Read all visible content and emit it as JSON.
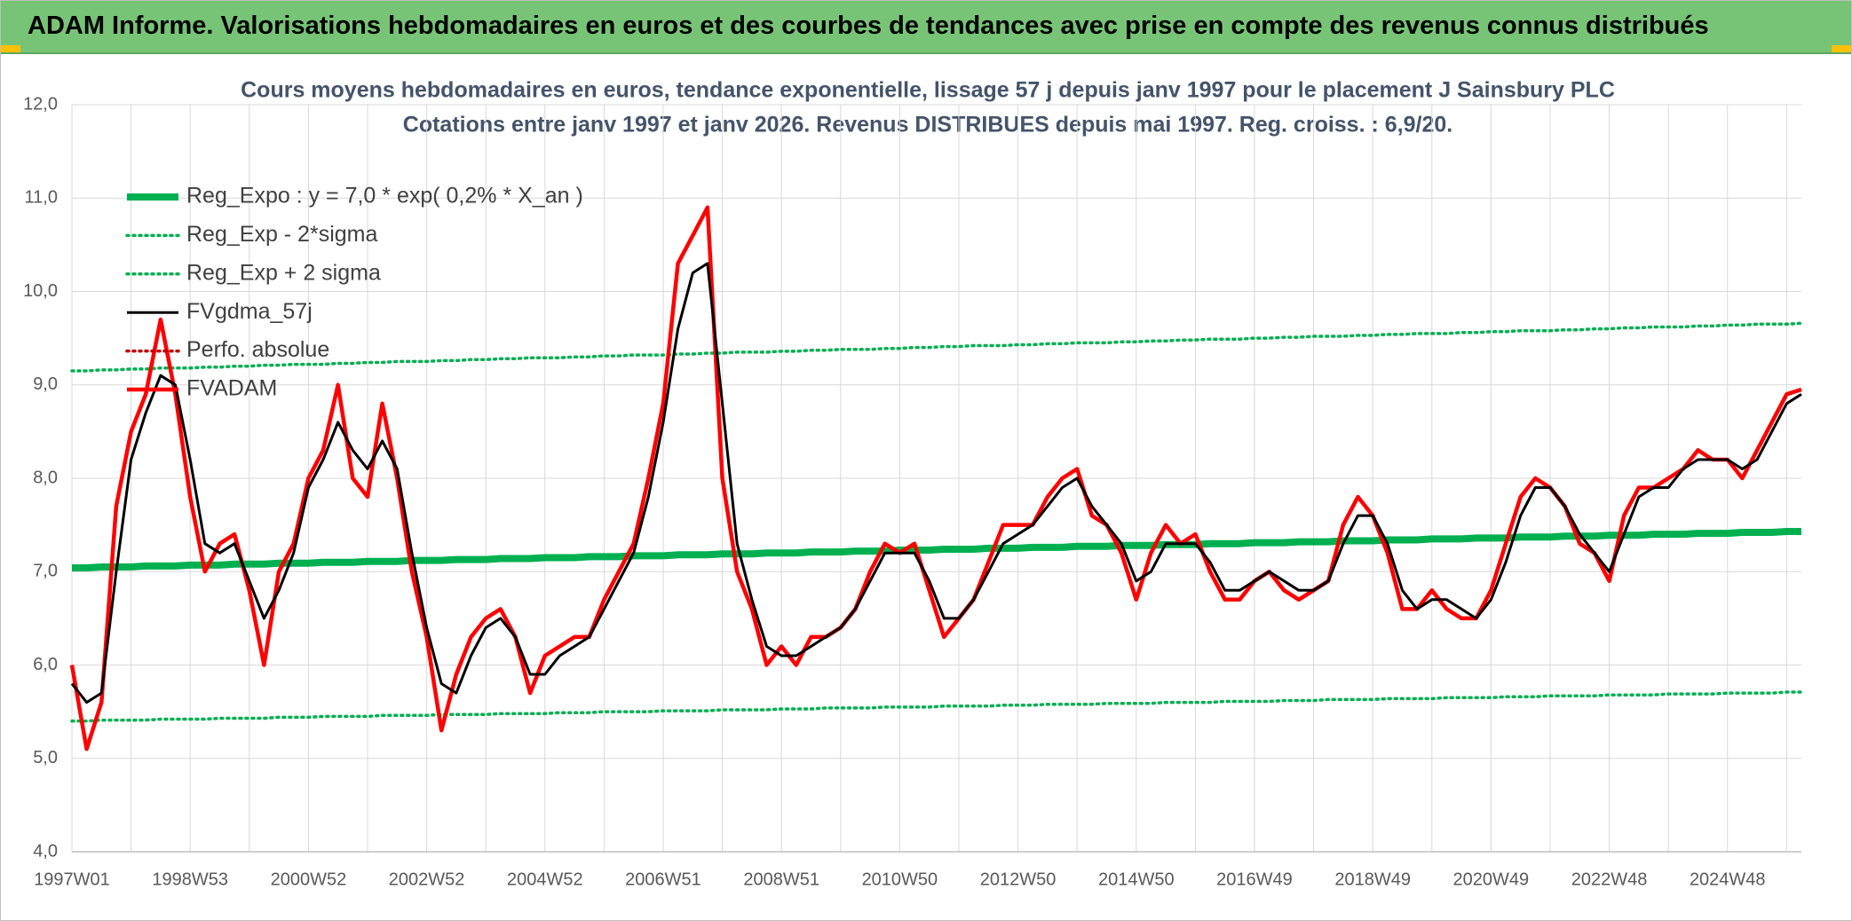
{
  "header": "ADAM Informe. Valorisations hebdomadaires en euros et des courbes de tendances avec prise en compte des revenus connus distribués",
  "chart_data": {
    "type": "line",
    "title": [
      "Cours moyens hebdomadaires en euros, tendance exponentielle, lissage 57 j depuis janv 1997 pour le placement J Sainsbury PLC",
      "Cotations entre janv 1997 et janv 2026. Revenus DISTRIBUES depuis mai 1997. Reg. croiss. : 6,9/20."
    ],
    "categories": [
      "1997W01",
      null,
      null,
      null,
      null,
      null,
      null,
      null,
      "1998W53",
      null,
      null,
      null,
      null,
      null,
      null,
      null,
      "2000W52",
      null,
      null,
      null,
      null,
      null,
      null,
      null,
      "2002W52",
      null,
      null,
      null,
      null,
      null,
      null,
      null,
      "2004W52",
      null,
      null,
      null,
      null,
      null,
      null,
      null,
      "2006W51",
      null,
      null,
      null,
      null,
      null,
      null,
      null,
      "2008W51",
      null,
      null,
      null,
      null,
      null,
      null,
      null,
      "2010W50",
      null,
      null,
      null,
      null,
      null,
      null,
      null,
      "2012W50",
      null,
      null,
      null,
      null,
      null,
      null,
      null,
      "2014W50",
      null,
      null,
      null,
      null,
      null,
      null,
      null,
      "2016W49",
      null,
      null,
      null,
      null,
      null,
      null,
      null,
      "2018W49",
      null,
      null,
      null,
      null,
      null,
      null,
      null,
      "2020W49",
      null,
      null,
      null,
      null,
      null,
      null,
      null,
      "2022W48",
      null,
      null,
      null,
      null,
      null,
      null,
      null,
      "2024W48",
      null,
      null,
      null,
      null,
      null
    ],
    "ylim": [
      4,
      12
    ],
    "yticks": [
      {
        "value": 4,
        "label": "4,0"
      },
      {
        "value": 5,
        "label": "5,0"
      },
      {
        "value": 6,
        "label": "6,0"
      },
      {
        "value": 7,
        "label": "7,0"
      },
      {
        "value": 8,
        "label": "8,0"
      },
      {
        "value": 9,
        "label": "9,0"
      },
      {
        "value": 10,
        "label": "10,0"
      },
      {
        "value": 11,
        "label": "11,0"
      },
      {
        "value": 12,
        "label": "12,0"
      }
    ],
    "grid": true,
    "legend": "upper left",
    "series": [
      {
        "name": "Reg_Expo : y = 7,0 * exp( 0,2% *  X_an )",
        "color": "#00b050",
        "style": "thick",
        "values": [
          7.04,
          7.04,
          7.05,
          7.05,
          7.05,
          7.06,
          7.06,
          7.06,
          7.07,
          7.07,
          7.07,
          7.08,
          7.08,
          7.08,
          7.09,
          7.09,
          7.09,
          7.1,
          7.1,
          7.1,
          7.11,
          7.11,
          7.11,
          7.12,
          7.12,
          7.12,
          7.13,
          7.13,
          7.13,
          7.14,
          7.14,
          7.14,
          7.15,
          7.15,
          7.15,
          7.16,
          7.16,
          7.16,
          7.17,
          7.17,
          7.17,
          7.18,
          7.18,
          7.18,
          7.19,
          7.19,
          7.19,
          7.2,
          7.2,
          7.2,
          7.21,
          7.21,
          7.21,
          7.22,
          7.22,
          7.22,
          7.23,
          7.23,
          7.23,
          7.24,
          7.24,
          7.24,
          7.25,
          7.25,
          7.25,
          7.26,
          7.26,
          7.26,
          7.27,
          7.27,
          7.27,
          7.28,
          7.28,
          7.28,
          7.29,
          7.29,
          7.29,
          7.3,
          7.3,
          7.3,
          7.31,
          7.31,
          7.31,
          7.32,
          7.32,
          7.32,
          7.33,
          7.33,
          7.33,
          7.34,
          7.34,
          7.34,
          7.35,
          7.35,
          7.35,
          7.36,
          7.36,
          7.36,
          7.37,
          7.37,
          7.37,
          7.38,
          7.38,
          7.38,
          7.39,
          7.39,
          7.39,
          7.4,
          7.4,
          7.4,
          7.41,
          7.41,
          7.41,
          7.42,
          7.42,
          7.42,
          7.43,
          7.43
        ]
      },
      {
        "name": "Reg_Exp - 2*sigma",
        "color": "#00b050",
        "style": "dotted",
        "values": [
          5.4,
          5.4,
          5.41,
          5.41,
          5.41,
          5.41,
          5.42,
          5.42,
          5.42,
          5.42,
          5.43,
          5.43,
          5.43,
          5.43,
          5.44,
          5.44,
          5.44,
          5.45,
          5.45,
          5.45,
          5.45,
          5.46,
          5.46,
          5.46,
          5.46,
          5.47,
          5.47,
          5.47,
          5.47,
          5.48,
          5.48,
          5.48,
          5.48,
          5.49,
          5.49,
          5.49,
          5.5,
          5.5,
          5.5,
          5.5,
          5.51,
          5.51,
          5.51,
          5.51,
          5.52,
          5.52,
          5.52,
          5.52,
          5.53,
          5.53,
          5.53,
          5.54,
          5.54,
          5.54,
          5.54,
          5.55,
          5.55,
          5.55,
          5.55,
          5.56,
          5.56,
          5.56,
          5.56,
          5.57,
          5.57,
          5.57,
          5.58,
          5.58,
          5.58,
          5.58,
          5.59,
          5.59,
          5.59,
          5.59,
          5.6,
          5.6,
          5.6,
          5.6,
          5.61,
          5.61,
          5.61,
          5.61,
          5.62,
          5.62,
          5.62,
          5.63,
          5.63,
          5.63,
          5.63,
          5.64,
          5.64,
          5.64,
          5.64,
          5.65,
          5.65,
          5.65,
          5.65,
          5.66,
          5.66,
          5.66,
          5.67,
          5.67,
          5.67,
          5.67,
          5.68,
          5.68,
          5.68,
          5.68,
          5.69,
          5.69,
          5.69,
          5.69,
          5.7,
          5.7,
          5.7,
          5.7,
          5.71,
          5.71
        ]
      },
      {
        "name": "Reg_Exp + 2 sigma",
        "color": "#00b050",
        "style": "dotted",
        "values": [
          9.15,
          9.15,
          9.16,
          9.16,
          9.17,
          9.17,
          9.18,
          9.18,
          9.18,
          9.19,
          9.19,
          9.2,
          9.2,
          9.21,
          9.21,
          9.22,
          9.22,
          9.22,
          9.23,
          9.23,
          9.24,
          9.24,
          9.25,
          9.25,
          9.25,
          9.26,
          9.26,
          9.27,
          9.27,
          9.28,
          9.28,
          9.29,
          9.29,
          9.29,
          9.3,
          9.3,
          9.31,
          9.31,
          9.32,
          9.32,
          9.32,
          9.33,
          9.33,
          9.34,
          9.34,
          9.35,
          9.35,
          9.35,
          9.36,
          9.36,
          9.37,
          9.37,
          9.38,
          9.38,
          9.38,
          9.39,
          9.39,
          9.4,
          9.4,
          9.41,
          9.41,
          9.42,
          9.42,
          9.42,
          9.43,
          9.43,
          9.44,
          9.44,
          9.45,
          9.45,
          9.45,
          9.46,
          9.46,
          9.47,
          9.47,
          9.48,
          9.48,
          9.49,
          9.49,
          9.49,
          9.5,
          9.5,
          9.51,
          9.51,
          9.52,
          9.52,
          9.52,
          9.53,
          9.53,
          9.54,
          9.54,
          9.55,
          9.55,
          9.55,
          9.56,
          9.56,
          9.57,
          9.57,
          9.58,
          9.58,
          9.58,
          9.59,
          9.59,
          9.6,
          9.6,
          9.61,
          9.61,
          9.62,
          9.62,
          9.62,
          9.63,
          9.63,
          9.64,
          9.64,
          9.65,
          9.65,
          9.65,
          9.66
        ]
      },
      {
        "name": "FVgdma_57j",
        "color": "#000000",
        "style": "thin",
        "values": [
          5.8,
          5.6,
          5.7,
          7.0,
          8.2,
          8.7,
          9.1,
          9.0,
          8.2,
          7.3,
          7.2,
          7.3,
          6.9,
          6.5,
          6.8,
          7.2,
          7.9,
          8.2,
          8.6,
          8.3,
          8.1,
          8.4,
          8.1,
          7.2,
          6.4,
          5.8,
          5.7,
          6.1,
          6.4,
          6.5,
          6.3,
          5.9,
          5.9,
          6.1,
          6.2,
          6.3,
          6.6,
          6.9,
          7.2,
          7.8,
          8.6,
          9.6,
          10.2,
          10.3,
          8.8,
          7.3,
          6.7,
          6.2,
          6.1,
          6.1,
          6.2,
          6.3,
          6.4,
          6.6,
          6.9,
          7.2,
          7.2,
          7.2,
          6.9,
          6.5,
          6.5,
          6.7,
          7.0,
          7.3,
          7.4,
          7.5,
          7.7,
          7.9,
          8.0,
          7.7,
          7.5,
          7.3,
          6.9,
          7.0,
          7.3,
          7.3,
          7.3,
          7.1,
          6.8,
          6.8,
          6.9,
          7.0,
          6.9,
          6.8,
          6.8,
          6.9,
          7.3,
          7.6,
          7.6,
          7.3,
          6.8,
          6.6,
          6.7,
          6.7,
          6.6,
          6.5,
          6.7,
          7.1,
          7.6,
          7.9,
          7.9,
          7.7,
          7.4,
          7.2,
          7.0,
          7.4,
          7.8,
          7.9,
          7.9,
          8.1,
          8.2,
          8.2,
          8.2,
          8.1,
          8.2,
          8.5,
          8.8,
          8.9
        ]
      },
      {
        "name": "Perfo. absolue",
        "color": "#c00000",
        "style": "dotted",
        "values": [
          null,
          null,
          null,
          null,
          null,
          null,
          null,
          null,
          null,
          null,
          null,
          null,
          null,
          null,
          null,
          null,
          null,
          null,
          null,
          null,
          null,
          null,
          null,
          null,
          null,
          null,
          null,
          null,
          null,
          null,
          null,
          null,
          null,
          null,
          null,
          null,
          null,
          null,
          null,
          null,
          null,
          null,
          null,
          null,
          null,
          null,
          null,
          null,
          null,
          null,
          null,
          null,
          null,
          null,
          null,
          null,
          null,
          null,
          null,
          null,
          null,
          null,
          null,
          null,
          null,
          null,
          null,
          null,
          null,
          null,
          null,
          null,
          null,
          null,
          null,
          null,
          null,
          null,
          null,
          null,
          null,
          null,
          null,
          null,
          null,
          null,
          null,
          null,
          null,
          null,
          null,
          null,
          null,
          null,
          null,
          null,
          null,
          null,
          null,
          null,
          null,
          null,
          null,
          null,
          null,
          null,
          null,
          null,
          null,
          null,
          null,
          null,
          null,
          null,
          null,
          null,
          null,
          null
        ]
      },
      {
        "name": "FVADAM",
        "color": "#ff0000",
        "style": "medium",
        "values": [
          6.0,
          5.1,
          5.6,
          7.7,
          8.5,
          8.9,
          9.7,
          8.9,
          7.8,
          7.0,
          7.3,
          7.4,
          6.8,
          6.0,
          7.0,
          7.3,
          8.0,
          8.3,
          9.0,
          8.0,
          7.8,
          8.8,
          8.0,
          7.0,
          6.3,
          5.3,
          5.9,
          6.3,
          6.5,
          6.6,
          6.3,
          5.7,
          6.1,
          6.2,
          6.3,
          6.3,
          6.7,
          7.0,
          7.3,
          8.0,
          8.8,
          10.3,
          10.6,
          10.9,
          8.0,
          7.0,
          6.6,
          6.0,
          6.2,
          6.0,
          6.3,
          6.3,
          6.4,
          6.6,
          7.0,
          7.3,
          7.2,
          7.3,
          6.8,
          6.3,
          6.5,
          6.7,
          7.1,
          7.5,
          7.5,
          7.5,
          7.8,
          8.0,
          8.1,
          7.6,
          7.5,
          7.2,
          6.7,
          7.2,
          7.5,
          7.3,
          7.4,
          7.0,
          6.7,
          6.7,
          6.9,
          7.0,
          6.8,
          6.7,
          6.8,
          6.9,
          7.5,
          7.8,
          7.6,
          7.2,
          6.6,
          6.6,
          6.8,
          6.6,
          6.5,
          6.5,
          6.8,
          7.3,
          7.8,
          8.0,
          7.9,
          7.7,
          7.3,
          7.2,
          6.9,
          7.6,
          7.9,
          7.9,
          8.0,
          8.1,
          8.3,
          8.2,
          8.2,
          8.0,
          8.3,
          8.6,
          8.9,
          8.95
        ]
      }
    ]
  }
}
